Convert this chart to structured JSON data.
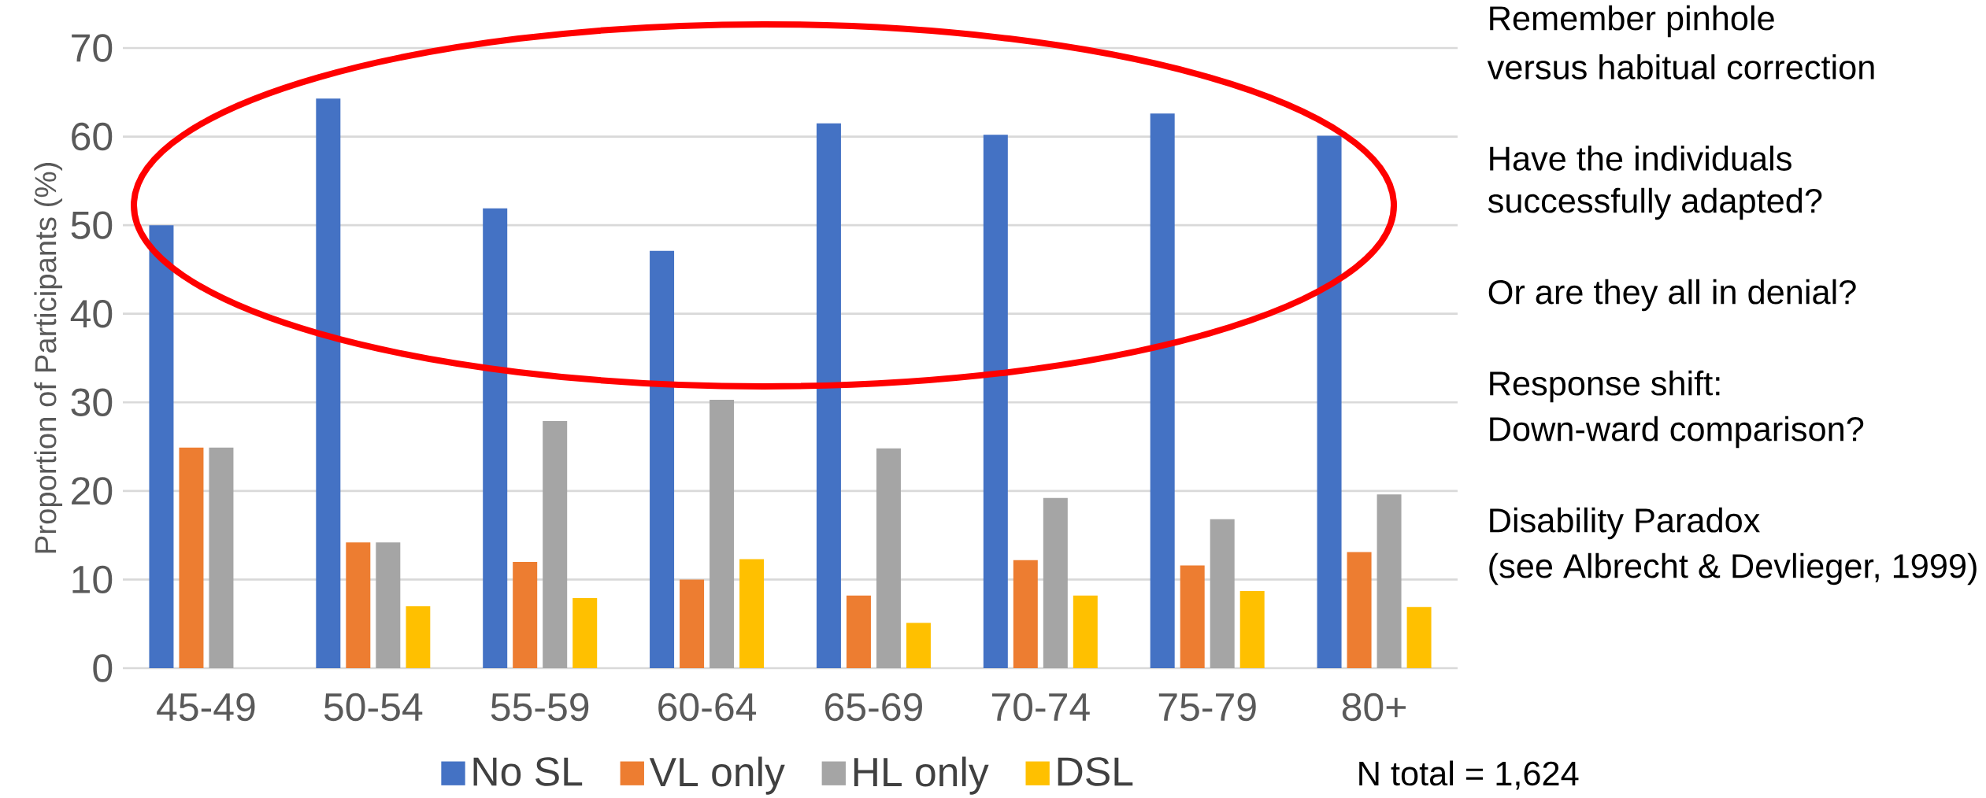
{
  "chart_data": {
    "type": "bar",
    "ylabel": "Proportion of Participants (%)",
    "categories": [
      "45-49",
      "50-54",
      "55-59",
      "60-64",
      "65-69",
      "70-74",
      "75-79",
      "80+"
    ],
    "series": [
      {
        "name": "No SL",
        "color": "#4472c4",
        "values": [
          50.0,
          64.3,
          51.9,
          47.1,
          61.5,
          60.2,
          62.6,
          60.1
        ]
      },
      {
        "name": "VL only",
        "color": "#ed7d31",
        "values": [
          24.9,
          14.2,
          12.0,
          10.0,
          8.2,
          12.2,
          11.6,
          13.1
        ]
      },
      {
        "name": "HL only",
        "color": "#a5a5a5",
        "values": [
          24.9,
          14.2,
          27.9,
          30.3,
          24.8,
          19.2,
          16.8,
          19.6
        ]
      },
      {
        "name": "DSL",
        "color": "#ffc000",
        "values": [
          null,
          7.0,
          7.9,
          12.3,
          5.1,
          8.2,
          8.7,
          6.9
        ]
      }
    ],
    "ylim": [
      0,
      70
    ],
    "yticks": [
      0,
      10,
      20,
      30,
      40,
      50,
      60,
      70
    ],
    "grid": "y",
    "legend": "bottom",
    "annotations": [
      "Remember pinhole",
      "versus habitual correction",
      "Have the individuals",
      "successfully adapted?",
      "Or are they all in denial?",
      "Response shift:",
      "Down-ward comparison?",
      "Disability Paradox",
      "(see Albrecht & Devlieger, 1999)",
      "N total = 1,624"
    ]
  }
}
